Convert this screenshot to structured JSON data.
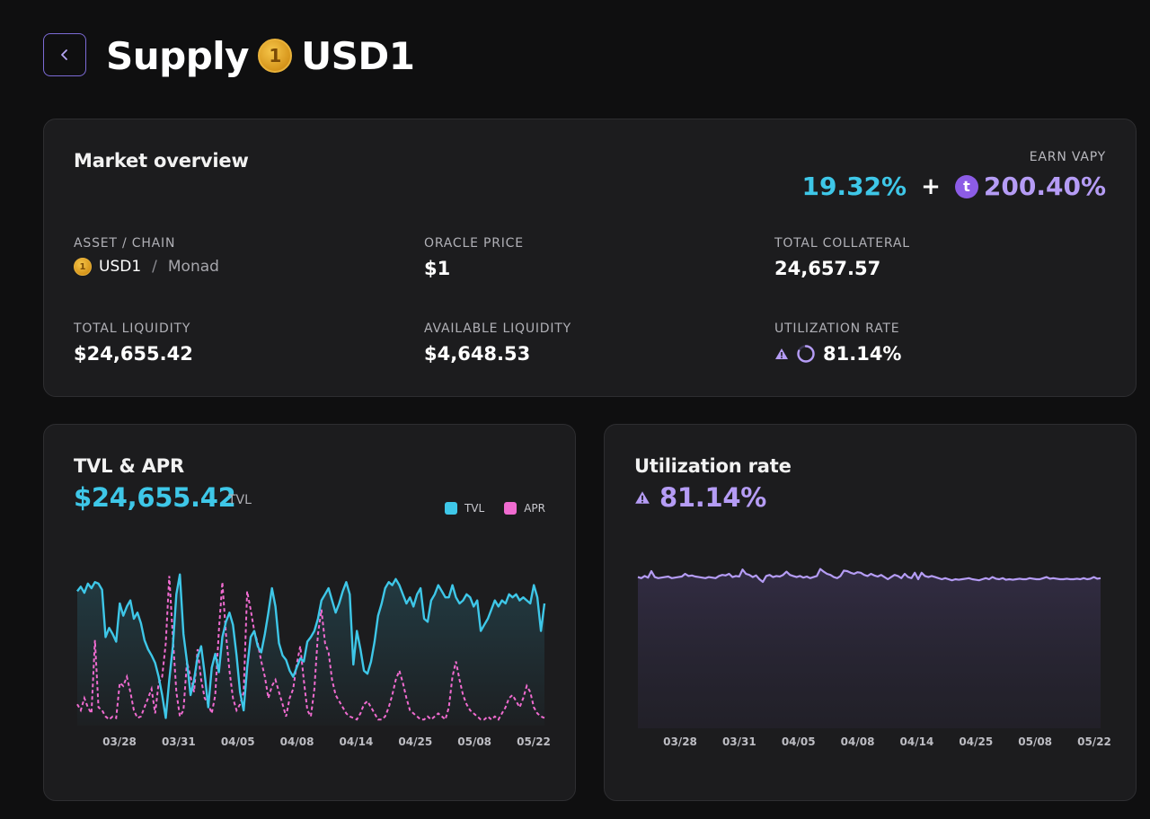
{
  "header": {
    "title_prefix": "Supply",
    "coin_glyph": "1",
    "asset": "USD1",
    "back_icon": "chevron-left-icon"
  },
  "overview": {
    "title": "Market overview",
    "earn_label": "EARN VAPY",
    "vapy_base": "19.32%",
    "plus": "+",
    "reward_glyph": "t",
    "vapy_reward": "200.40%",
    "asset_chain_label": "ASSET / CHAIN",
    "asset": "USD1",
    "slash": "/",
    "chain": "Monad",
    "oracle_price_label": "ORACLE PRICE",
    "oracle_price": "$1",
    "total_collateral_label": "TOTAL COLLATERAL",
    "total_collateral": "24,657.57",
    "total_liquidity_label": "TOTAL LIQUIDITY",
    "total_liquidity": "$24,655.42",
    "available_liquidity_label": "AVAILABLE LIQUIDITY",
    "available_liquidity": "$4,648.53",
    "utilization_label": "UTILIZATION RATE",
    "utilization": "81.14%",
    "utilization_fraction": 0.8114
  },
  "colors": {
    "tvl": "#3ec7e8",
    "apr": "#f06bd0",
    "utilization": "#b59cf5",
    "accent": "#7c6bd6"
  },
  "tvl_card": {
    "title": "TVL & APR",
    "value": "$24,655.42",
    "unit": "TVL",
    "legend": [
      "TVL",
      "APR"
    ]
  },
  "util_card": {
    "title": "Utilization rate",
    "value": "81.14%"
  },
  "chart_data": [
    {
      "type": "line",
      "title": "TVL & APR",
      "x_ticks": [
        "03/28",
        "03/31",
        "04/05",
        "04/08",
        "04/14",
        "04/25",
        "05/08",
        "05/22"
      ],
      "grid": false,
      "legend_position": "top-right",
      "series": [
        {
          "name": "TVL",
          "values": [
            0.88,
            0.91,
            0.87,
            0.93,
            0.9,
            0.94,
            0.93,
            0.89,
            0.58,
            0.64,
            0.6,
            0.55,
            0.8,
            0.72,
            0.78,
            0.82,
            0.7,
            0.74,
            0.67,
            0.56,
            0.5,
            0.46,
            0.41,
            0.32,
            0.2,
            0.05,
            0.3,
            0.52,
            0.86,
            0.99,
            0.6,
            0.42,
            0.2,
            0.3,
            0.45,
            0.52,
            0.34,
            0.12,
            0.38,
            0.47,
            0.35,
            0.58,
            0.68,
            0.74,
            0.66,
            0.46,
            0.22,
            0.1,
            0.38,
            0.58,
            0.62,
            0.52,
            0.48,
            0.6,
            0.74,
            0.9,
            0.78,
            0.54,
            0.46,
            0.43,
            0.36,
            0.32,
            0.38,
            0.44,
            0.42,
            0.55,
            0.58,
            0.62,
            0.7,
            0.82,
            0.86,
            0.9,
            0.82,
            0.74,
            0.8,
            0.88,
            0.94,
            0.86,
            0.4,
            0.62,
            0.5,
            0.36,
            0.34,
            0.42,
            0.55,
            0.72,
            0.8,
            0.9,
            0.94,
            0.92,
            0.96,
            0.92,
            0.86,
            0.8,
            0.84,
            0.78,
            0.86,
            0.9,
            0.7,
            0.68,
            0.82,
            0.86,
            0.92,
            0.88,
            0.84,
            0.84,
            0.92,
            0.84,
            0.8,
            0.82,
            0.86,
            0.84,
            0.78,
            0.82,
            0.62,
            0.66,
            0.7,
            0.76,
            0.82,
            0.78,
            0.82,
            0.8,
            0.86,
            0.84,
            0.86,
            0.82,
            0.84,
            0.82,
            0.8,
            0.92,
            0.84,
            0.62,
            0.8
          ],
          "unit": "normalized"
        },
        {
          "name": "APR",
          "values": [
            0.14,
            0.1,
            0.18,
            0.12,
            0.08,
            0.56,
            0.12,
            0.1,
            0.06,
            0.04,
            0.06,
            0.05,
            0.28,
            0.26,
            0.32,
            0.22,
            0.1,
            0.05,
            0.06,
            0.12,
            0.18,
            0.24,
            0.08,
            0.28,
            0.32,
            0.54,
            0.98,
            0.58,
            0.22,
            0.06,
            0.1,
            0.42,
            0.32,
            0.22,
            0.5,
            0.3,
            0.18,
            0.14,
            0.08,
            0.2,
            0.62,
            0.94,
            0.6,
            0.36,
            0.18,
            0.1,
            0.14,
            0.22,
            0.88,
            0.76,
            0.62,
            0.54,
            0.42,
            0.32,
            0.18,
            0.26,
            0.3,
            0.22,
            0.14,
            0.06,
            0.18,
            0.24,
            0.4,
            0.52,
            0.3,
            0.1,
            0.06,
            0.24,
            0.6,
            0.76,
            0.54,
            0.48,
            0.3,
            0.2,
            0.16,
            0.12,
            0.08,
            0.06,
            0.05,
            0.04,
            0.08,
            0.14,
            0.16,
            0.12,
            0.08,
            0.04,
            0.04,
            0.06,
            0.12,
            0.2,
            0.3,
            0.36,
            0.28,
            0.18,
            0.1,
            0.08,
            0.06,
            0.04,
            0.04,
            0.06,
            0.04,
            0.06,
            0.08,
            0.06,
            0.04,
            0.12,
            0.32,
            0.42,
            0.3,
            0.2,
            0.14,
            0.1,
            0.08,
            0.06,
            0.04,
            0.04,
            0.06,
            0.04,
            0.06,
            0.04,
            0.08,
            0.12,
            0.18,
            0.2,
            0.16,
            0.12,
            0.18,
            0.26,
            0.22,
            0.12,
            0.08,
            0.06,
            0.05
          ]
        }
      ]
    },
    {
      "type": "area",
      "title": "Utilization rate",
      "x_ticks": [
        "03/28",
        "03/31",
        "04/05",
        "04/08",
        "04/14",
        "04/25",
        "05/08",
        "05/22"
      ],
      "grid": false,
      "series": [
        {
          "values": [
            0.84,
            0.82,
            0.86,
            0.83,
            0.95,
            0.84,
            0.82,
            0.83,
            0.84,
            0.85,
            0.82,
            0.83,
            0.84,
            0.85,
            0.9,
            0.86,
            0.87,
            0.85,
            0.84,
            0.83,
            0.82,
            0.84,
            0.83,
            0.82,
            0.86,
            0.88,
            0.87,
            0.9,
            0.84,
            0.86,
            0.85,
            0.98,
            0.9,
            0.88,
            0.84,
            0.87,
            0.8,
            0.75,
            0.86,
            0.88,
            0.84,
            0.86,
            0.85,
            0.88,
            0.94,
            0.88,
            0.86,
            0.84,
            0.86,
            0.83,
            0.85,
            0.82,
            0.84,
            0.86,
            0.99,
            0.94,
            0.9,
            0.88,
            0.84,
            0.82,
            0.86,
            0.96,
            0.95,
            0.92,
            0.9,
            0.93,
            0.92,
            0.88,
            0.86,
            0.9,
            0.87,
            0.85,
            0.88,
            0.84,
            0.8,
            0.84,
            0.88,
            0.86,
            0.82,
            0.9,
            0.84,
            0.82,
            0.92,
            0.8,
            0.92,
            0.86,
            0.84,
            0.86,
            0.84,
            0.82,
            0.8,
            0.82,
            0.8,
            0.78,
            0.8,
            0.79,
            0.8,
            0.81,
            0.82,
            0.8,
            0.79,
            0.78,
            0.8,
            0.82,
            0.8,
            0.84,
            0.81,
            0.8,
            0.82,
            0.79,
            0.8,
            0.79,
            0.8,
            0.81,
            0.8,
            0.8,
            0.82,
            0.81,
            0.8,
            0.8,
            0.82,
            0.84,
            0.81,
            0.82,
            0.81,
            0.8,
            0.8,
            0.81,
            0.8,
            0.8,
            0.81,
            0.8,
            0.82,
            0.8,
            0.81,
            0.84,
            0.81,
            0.82
          ]
        }
      ]
    }
  ]
}
